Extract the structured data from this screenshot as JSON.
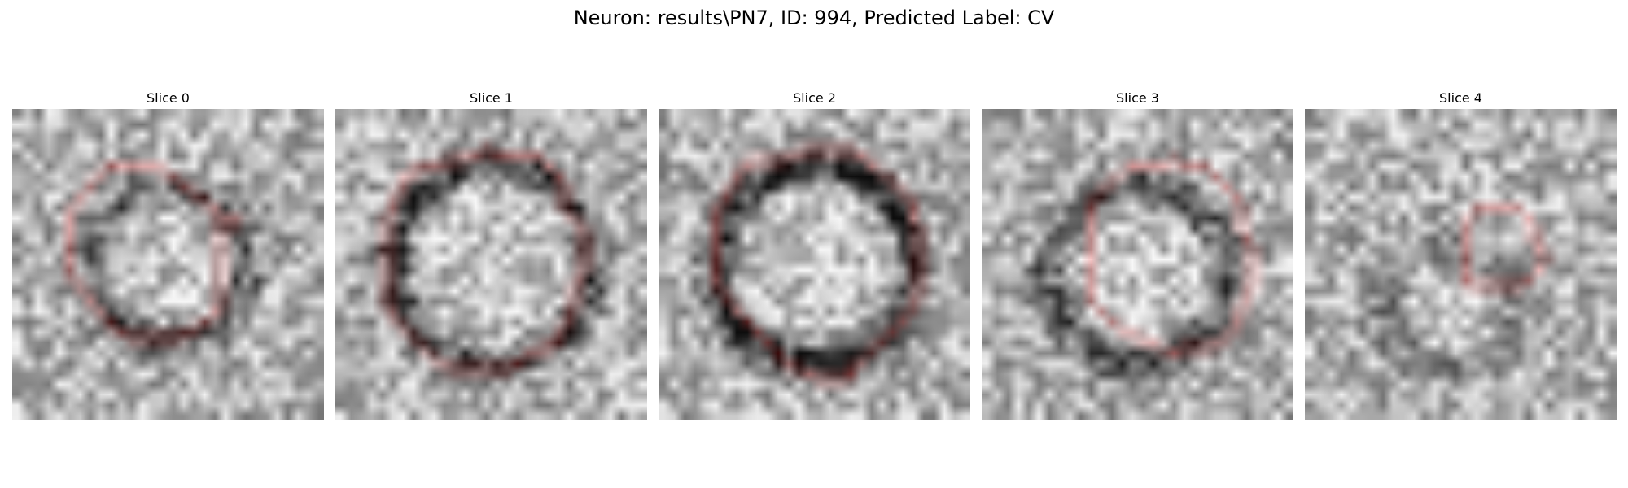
{
  "figure": {
    "title": "Neuron: results\\PN7, ID: 994, Predicted Label: CV"
  },
  "panels": [
    {
      "title": "Slice 0",
      "seed": 11,
      "ring_darkness": 0.35,
      "outline_color": "#ff0000"
    },
    {
      "title": "Slice 1",
      "seed": 23,
      "ring_darkness": 0.45,
      "outline_color": "#ff0000"
    },
    {
      "title": "Slice 2",
      "seed": 37,
      "ring_darkness": 0.55,
      "outline_color": "#ff0000"
    },
    {
      "title": "Slice 3",
      "seed": 41,
      "ring_darkness": 0.4,
      "outline_color": "#ff0000"
    },
    {
      "title": "Slice 4",
      "seed": 59,
      "ring_darkness": 0.2,
      "outline_color": "#ff0000"
    }
  ]
}
